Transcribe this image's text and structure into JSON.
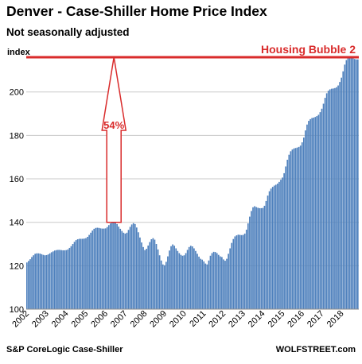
{
  "header": {
    "title": "Denver  - Case-Shiller Home Price Index",
    "subtitle": "Not seasonally adjusted"
  },
  "footer": {
    "source": "S&P CoreLogic Case-Shiller",
    "brand": "WOLFSTREET.com"
  },
  "annotations": {
    "bubble_label": "Housing Bubble 2",
    "arrow_label": "54%",
    "accent_color": "#d92b2b",
    "bar_color": "#4f81bd"
  },
  "chart_data": {
    "type": "bar",
    "title": "Denver  - Case-Shiller Home Price Index",
    "subtitle": "Not seasonally adjusted",
    "ylabel": "index",
    "ylim": [
      100,
      216
    ],
    "yticks": [
      100,
      120,
      140,
      160,
      180,
      200
    ],
    "grid": true,
    "x_start": "2002-01",
    "x_end": "2018-11",
    "xticks": [
      "2002",
      "2003",
      "2004",
      "2005",
      "2006",
      "2007",
      "2008",
      "2009",
      "2010",
      "2011",
      "2012",
      "2013",
      "2014",
      "2015",
      "2016",
      "2017",
      "2018"
    ],
    "reference_line": {
      "label": "Housing Bubble 2",
      "value": 216
    },
    "arrow": {
      "label": "54%",
      "from": 140,
      "to": 216,
      "x": "2006-06"
    },
    "values": [
      121.5,
      122.2,
      123.0,
      124.0,
      124.8,
      125.5,
      125.7,
      125.7,
      125.6,
      125.3,
      125.0,
      124.8,
      124.9,
      125.2,
      125.7,
      126.2,
      126.6,
      127.0,
      127.2,
      127.3,
      127.3,
      127.2,
      127.1,
      127.1,
      127.2,
      127.5,
      128.2,
      129.0,
      130.0,
      131.0,
      131.8,
      132.2,
      132.4,
      132.4,
      132.4,
      132.5,
      132.7,
      133.3,
      134.2,
      135.2,
      136.2,
      137.0,
      137.4,
      137.5,
      137.4,
      137.2,
      137.1,
      137.1,
      137.2,
      137.8,
      138.7,
      139.5,
      140.2,
      140.6,
      140.2,
      139.2,
      138.0,
      137.0,
      136.0,
      135.2,
      134.8,
      135.2,
      136.5,
      137.9,
      139.0,
      139.6,
      139.2,
      137.6,
      135.4,
      133.0,
      130.7,
      128.6,
      127.2,
      127.8,
      129.3,
      130.9,
      132.2,
      132.7,
      132.0,
      130.0,
      127.5,
      124.8,
      122.4,
      120.6,
      120.2,
      121.8,
      124.3,
      127.0,
      129.0,
      129.8,
      129.2,
      128.0,
      126.8,
      125.8,
      125.0,
      124.6,
      124.8,
      125.8,
      127.3,
      128.6,
      129.2,
      128.9,
      128.0,
      126.8,
      125.5,
      124.2,
      123.2,
      122.8,
      122.0,
      121.0,
      120.6,
      122.4,
      124.6,
      125.8,
      126.4,
      126.3,
      125.8,
      125.0,
      124.3,
      124.0,
      122.9,
      122.3,
      123.2,
      125.5,
      128.0,
      130.5,
      132.3,
      133.5,
      134.0,
      134.3,
      134.2,
      134.1,
      134.2,
      134.8,
      136.6,
      139.5,
      142.6,
      145.2,
      146.9,
      147.4,
      147.0,
      146.7,
      146.5,
      146.5,
      146.6,
      147.6,
      149.8,
      152.3,
      154.3,
      155.5,
      156.3,
      156.9,
      157.3,
      157.8,
      158.6,
      159.6,
      160.6,
      162.6,
      165.7,
      168.8,
      171.1,
      172.7,
      173.5,
      174.0,
      174.2,
      174.4,
      174.7,
      175.3,
      176.8,
      179.0,
      182.3,
      185.0,
      186.7,
      187.5,
      188.0,
      188.2,
      188.5,
      188.9,
      189.5,
      190.7,
      192.3,
      194.6,
      197.3,
      199.4,
      200.6,
      201.2,
      201.5,
      201.6,
      201.8,
      202.2,
      203.0,
      204.6,
      206.6,
      209.5,
      212.6,
      214.7,
      215.8,
      216.2,
      216.0,
      215.6,
      215.2,
      215.0,
      215.0
    ]
  }
}
